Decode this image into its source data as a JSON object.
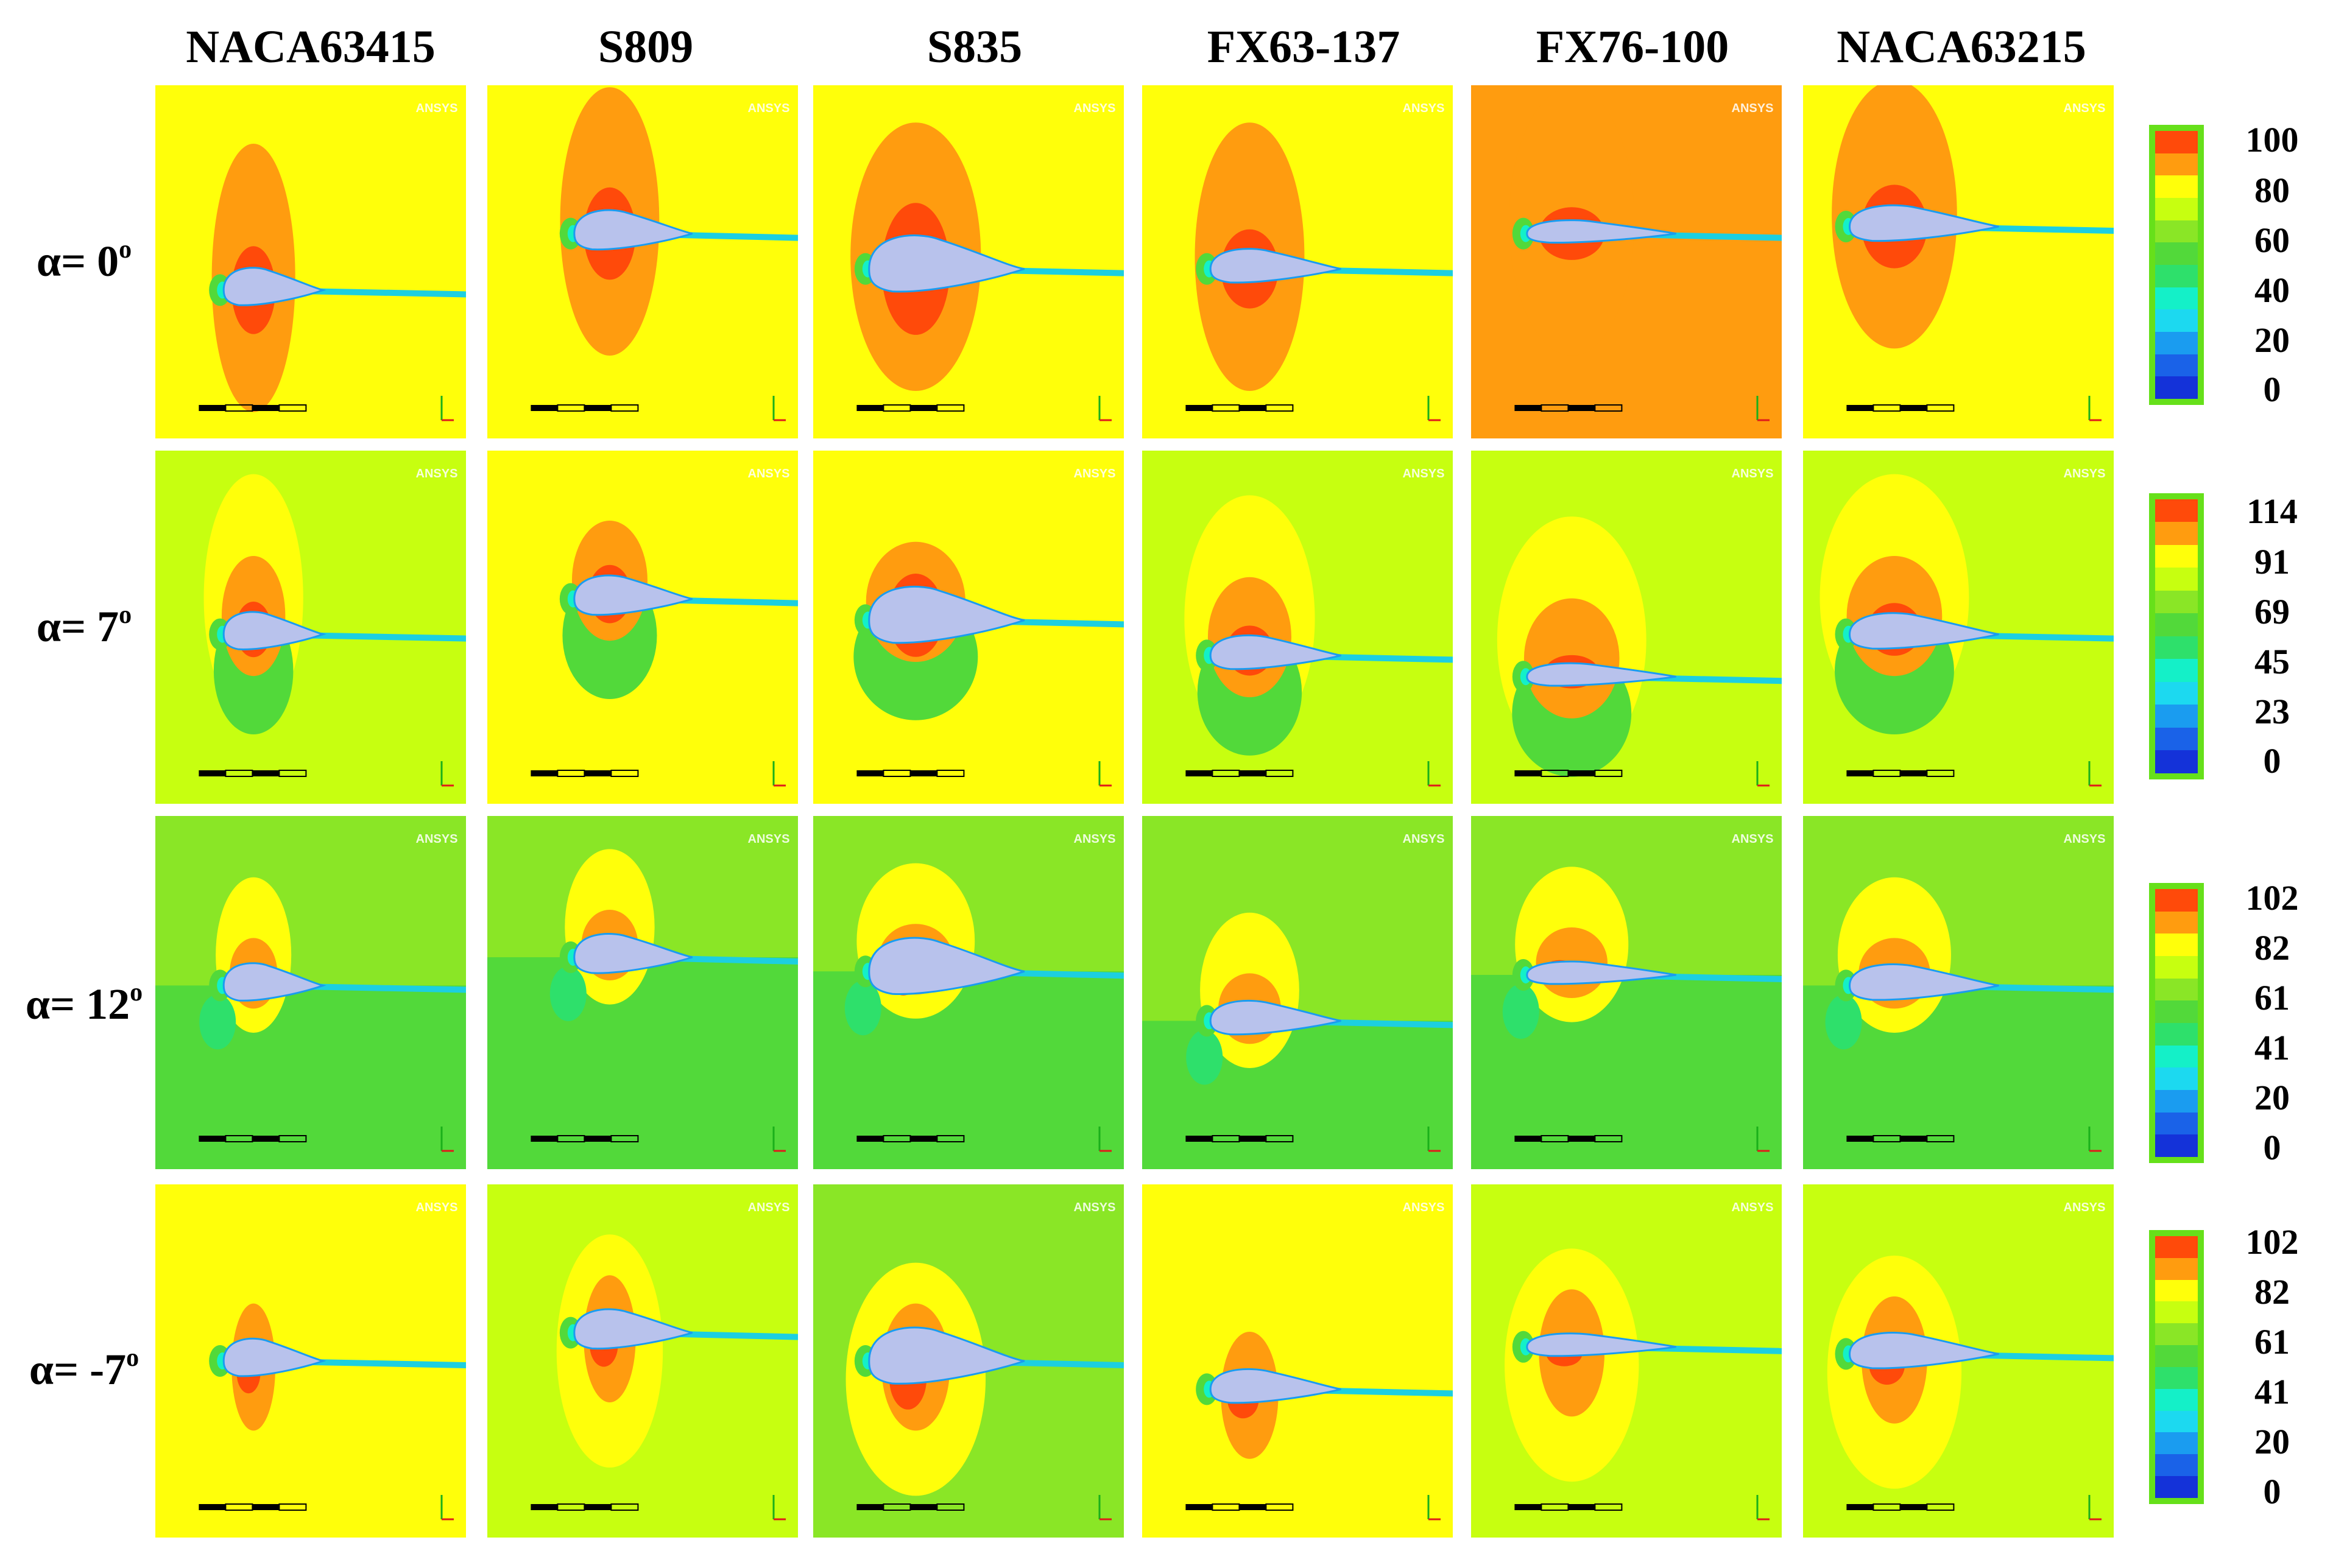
{
  "columns": [
    "NACA63415",
    "S809",
    "S835",
    "FX63-137",
    "FX76-100",
    "NACA63215"
  ],
  "rows": [
    {
      "label": "α= 0",
      "deg": "o"
    },
    {
      "label": "α= 7",
      "deg": "o"
    },
    {
      "label": "α= 12",
      "deg": "o"
    },
    {
      "label": "α= -7",
      "deg": "o"
    }
  ],
  "panel_watermark": "ANSYS",
  "colorbars": [
    {
      "ticks": [
        "100",
        "80",
        "60",
        "40",
        "20",
        "0"
      ]
    },
    {
      "ticks": [
        "114",
        "91",
        "69",
        "45",
        "23",
        "0"
      ]
    },
    {
      "ticks": [
        "102",
        "82",
        "61",
        "41",
        "20",
        "0"
      ]
    },
    {
      "ticks": [
        "102",
        "82",
        "61",
        "41",
        "20",
        "0"
      ]
    }
  ],
  "palette": {
    "red": "#ff4a0a",
    "orange": "#ff9c0f",
    "yellow": "#ffff0a",
    "lime": "#c7ff10",
    "light_green": "#8ae626",
    "green": "#52d93a",
    "teal_green": "#2ee06b",
    "cyan": "#14f0c8",
    "cyan2": "#1cd9f0",
    "sky": "#1a9cf0",
    "blue": "#1a62e8",
    "dark_blue": "#1432d9",
    "airfoil": "#b8c2ec",
    "wake": "#1ccfe0"
  }
}
